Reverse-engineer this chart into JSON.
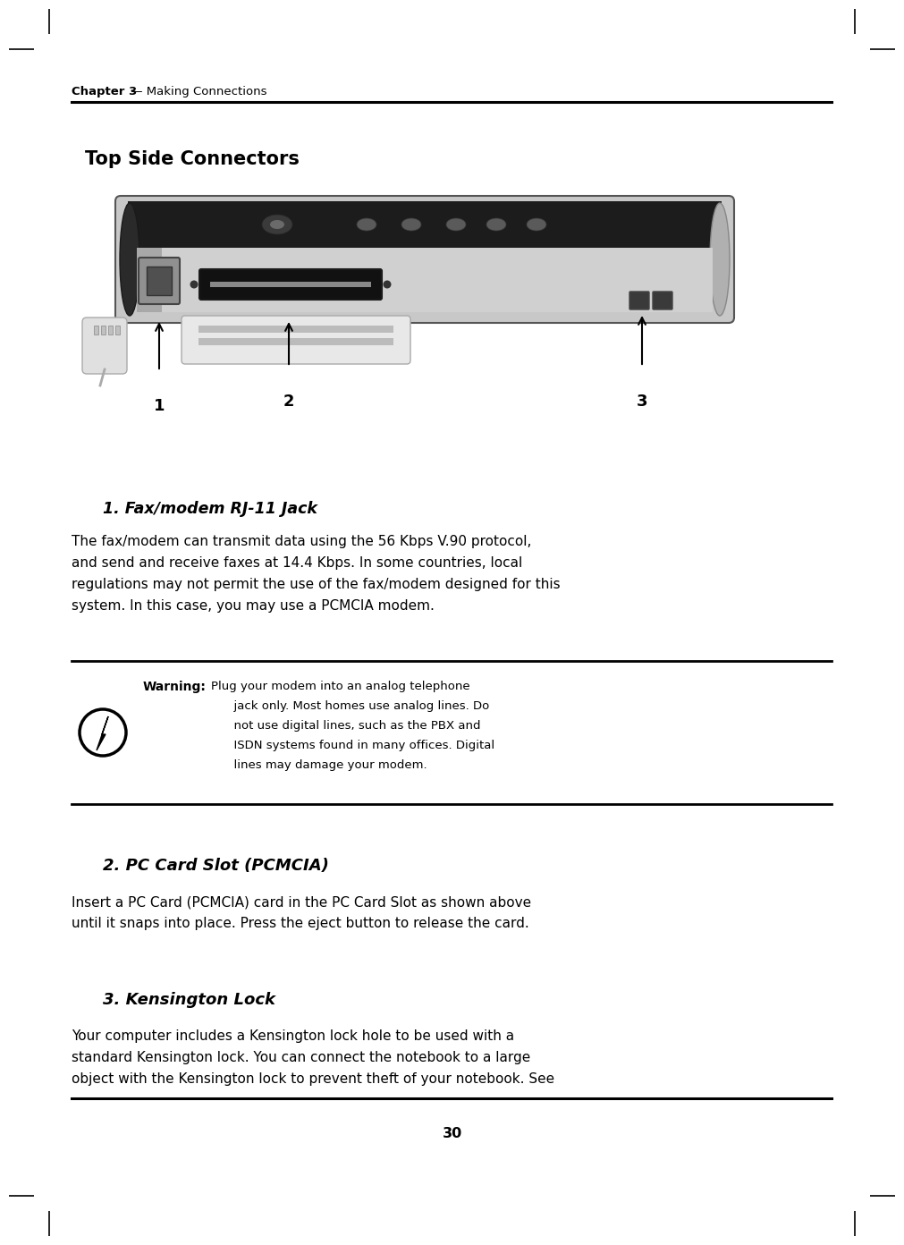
{
  "bg_color": "#ffffff",
  "header_bold": "Chapter 3",
  "header_rest": " — Making Connections",
  "section_title": "Top Side Connectors",
  "section1_title": "1. Fax/modem RJ-11 Jack",
  "section1_body_lines": [
    "The fax/modem can transmit data using the 56 Kbps V.90 protocol,",
    "and send and receive faxes at 14.4 Kbps. In some countries, local",
    "regulations may not permit the use of the fax/modem designed for this",
    "system. In this case, you may use a PCMCIA modem."
  ],
  "warning_label": "Warning:",
  "warning_lines": [
    "Plug your modem into an analog telephone",
    "      jack only. Most homes use analog lines. Do",
    "      not use digital lines, such as the PBX and",
    "      ISDN systems found in many offices. Digital",
    "      lines may damage your modem."
  ],
  "section2_title": "2. PC Card Slot (PCMCIA)",
  "section2_body_lines": [
    "Insert a PC Card (PCMCIA) card in the PC Card Slot as shown above",
    "until it snaps into place. Press the eject button to release the card."
  ],
  "section3_title": "3. Kensington Lock",
  "section3_body_lines": [
    "Your computer includes a Kensington lock hole to be used with a",
    "standard Kensington lock. You can connect the notebook to a large",
    "object with the Kensington lock to prevent theft of your notebook. See"
  ],
  "page_number": "30",
  "label1": "1",
  "label2": "2",
  "label3": "3",
  "crop_color": "#000000",
  "header_line_color": "#000000",
  "warn_line_color": "#000000",
  "footer_line_color": "#000000"
}
